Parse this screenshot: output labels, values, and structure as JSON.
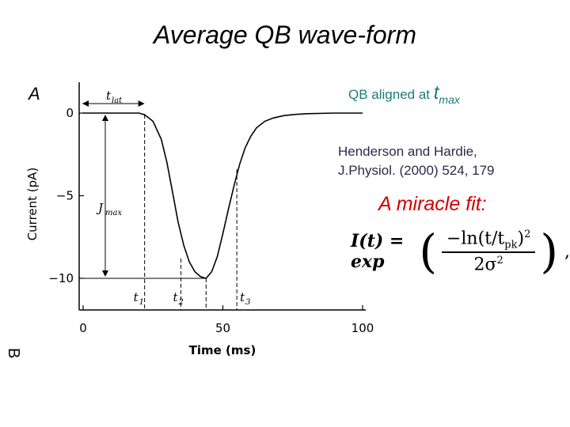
{
  "slide": {
    "title": "Average QB wave-form",
    "panel_letter": "A",
    "side_letter": "B",
    "aligned_text": "QB aligned at",
    "aligned_var": "t",
    "aligned_sub": "max",
    "reference_line1": "Henderson and Hardie,",
    "reference_line2": "J.Physiol. (2000) 524, 179",
    "miracle_text": "A miracle fit:",
    "formula": {
      "lhs": "I(t) = exp",
      "numerator": "−ln(t/t",
      "numerator_sub": "pk",
      "numerator_tail": ")",
      "numerator_sup": "2",
      "denominator": "2σ",
      "denominator_sup": "2",
      "comma": ","
    }
  },
  "chart_data": {
    "type": "line",
    "xlabel": "Time (ms)",
    "ylabel": "Current (pA)",
    "xlim": [
      0,
      100
    ],
    "ylim": [
      -10,
      0
    ],
    "xticks": [
      0,
      50,
      100
    ],
    "yticks": [
      0,
      -5,
      -10
    ],
    "series": [
      {
        "x": [
          0,
          5,
          10,
          15,
          20,
          22,
          25,
          28,
          30,
          32,
          34,
          36,
          38,
          40,
          42,
          44,
          46,
          48,
          50,
          52,
          54,
          56,
          58,
          60,
          62,
          65,
          68,
          72,
          76,
          80,
          90,
          100
        ],
        "values": [
          0,
          0,
          0,
          0,
          0,
          -0.1,
          -0.5,
          -1.6,
          -3.0,
          -4.8,
          -6.6,
          -8.0,
          -9.0,
          -9.6,
          -9.9,
          -10.0,
          -9.6,
          -8.7,
          -7.3,
          -5.8,
          -4.4,
          -3.1,
          -2.1,
          -1.4,
          -0.9,
          -0.5,
          -0.3,
          -0.15,
          -0.08,
          -0.04,
          0,
          0
        ]
      }
    ],
    "annotations": {
      "t_lat_label": "t",
      "t_lat_sub": "lat",
      "j_max_label": "J",
      "j_max_sub": "max",
      "t_labels": [
        {
          "name": "t",
          "sub": "1",
          "x": 22
        },
        {
          "name": "t",
          "sub": "2",
          "x": 35
        },
        {
          "name": "t",
          "sub": "3",
          "x": 55
        }
      ],
      "lat_x": 22,
      "peak_x": 44
    }
  }
}
